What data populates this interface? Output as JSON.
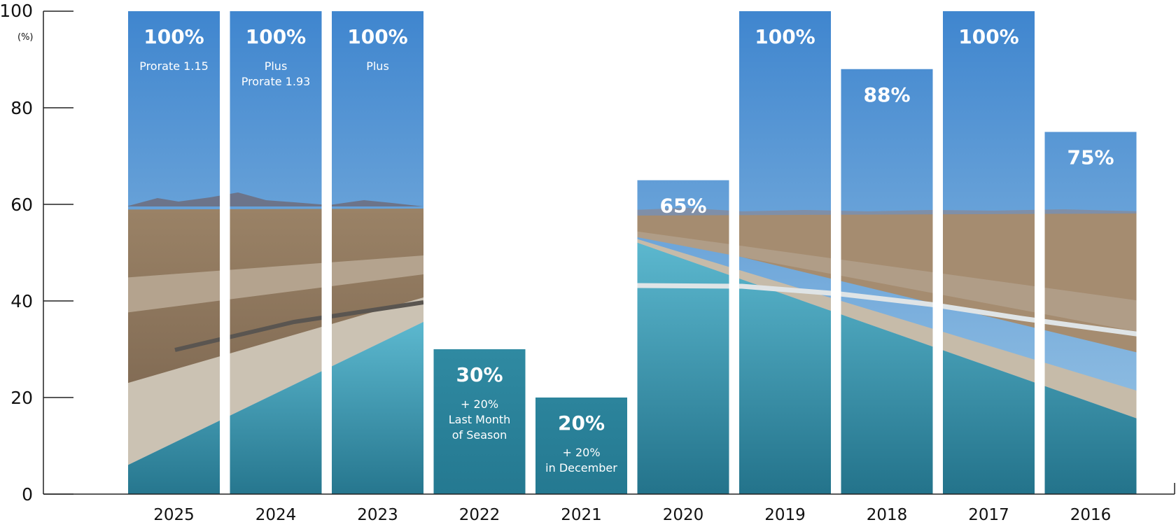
{
  "chart_data": {
    "type": "bar",
    "title": "",
    "xlabel": "",
    "ylabel": "(%)",
    "ylim": [
      0,
      100
    ],
    "yticks": [
      0,
      20,
      40,
      60,
      80,
      100
    ],
    "grid": false,
    "categories": [
      "2025",
      "2024",
      "2023",
      "2022",
      "2021",
      "2020",
      "2019",
      "2018",
      "2017",
      "2016"
    ],
    "values": [
      100,
      100,
      100,
      30,
      20,
      65,
      100,
      88,
      100,
      75
    ],
    "data_labels": [
      "100%",
      "100%",
      "100%",
      "30%",
      "20%",
      "65%",
      "100%",
      "88%",
      "100%",
      "75%"
    ],
    "notes": [
      [
        "Prorate 1.15"
      ],
      [
        "Plus",
        "Prorate 1.93"
      ],
      [
        "Plus"
      ],
      [
        "+ 20%",
        "Last Month",
        "of Season"
      ],
      [
        "+ 20%",
        "in December"
      ],
      [],
      [],
      [],
      [],
      []
    ]
  },
  "colors": {
    "sky_top": "#3f86cf",
    "sky_bottom": "#a9cfe8",
    "mountain": "#6f7890",
    "desert": "#8b7560",
    "canal_wall": "#c9bfb0",
    "water_top": "#4fb0c8",
    "water_bottom": "#1f6f86",
    "bar_water": "#2f8ea6",
    "axis": "#222222"
  }
}
